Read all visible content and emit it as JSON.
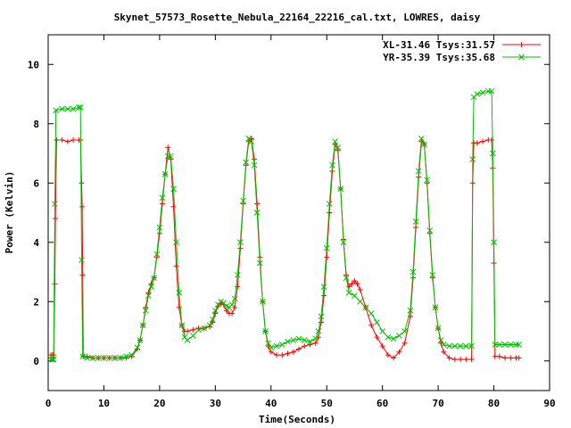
{
  "chart_data": {
    "type": "line",
    "title": "Skynet_57573_Rosette_Nebula_22164_22216_cal.txt, LOWRES, daisy",
    "xlabel": "Time(Seconds)",
    "ylabel": "Power (Kelvin)",
    "xlim": [
      0,
      90
    ],
    "ylim": [
      -1,
      11
    ],
    "xticks": [
      0,
      10,
      20,
      30,
      40,
      50,
      60,
      70,
      80,
      90
    ],
    "yticks": [
      0,
      2,
      4,
      6,
      8,
      10
    ],
    "grid": false,
    "legend_position": "top-right",
    "series": [
      {
        "name": "XL-31.46 Tsys:31.57",
        "color": "#ff0000",
        "marker": "plus",
        "points": [
          [
            0.5,
            0.2
          ],
          [
            0.8,
            0.2
          ],
          [
            1.0,
            0.2
          ],
          [
            1.2,
            2.6
          ],
          [
            1.3,
            4.8
          ],
          [
            1.5,
            7.45
          ],
          [
            2.5,
            7.45
          ],
          [
            3.5,
            7.4
          ],
          [
            4.5,
            7.45
          ],
          [
            5.5,
            7.45
          ],
          [
            5.8,
            7.45
          ],
          [
            6.0,
            6.0
          ],
          [
            6.1,
            5.2
          ],
          [
            6.2,
            2.9
          ],
          [
            6.3,
            0.15
          ],
          [
            7,
            0.15
          ],
          [
            8,
            0.1
          ],
          [
            9,
            0.1
          ],
          [
            10,
            0.1
          ],
          [
            11,
            0.1
          ],
          [
            12,
            0.1
          ],
          [
            13,
            0.1
          ],
          [
            14,
            0.1
          ],
          [
            15,
            0.15
          ],
          [
            16,
            0.4
          ],
          [
            16.5,
            0.7
          ],
          [
            17,
            1.2
          ],
          [
            17.5,
            1.8
          ],
          [
            18,
            2.3
          ],
          [
            18.5,
            2.6
          ],
          [
            19,
            2.8
          ],
          [
            19.5,
            3.5
          ],
          [
            20,
            4.3
          ],
          [
            20.5,
            5.3
          ],
          [
            21,
            6.3
          ],
          [
            21.5,
            7.2
          ],
          [
            22,
            6.8
          ],
          [
            22.5,
            5.2
          ],
          [
            23,
            3.2
          ],
          [
            23.5,
            1.8
          ],
          [
            24,
            1.2
          ],
          [
            24.5,
            1.0
          ],
          [
            25,
            1.0
          ],
          [
            26,
            1.05
          ],
          [
            27,
            1.1
          ],
          [
            28,
            1.1
          ],
          [
            29,
            1.15
          ],
          [
            29.5,
            1.3
          ],
          [
            30,
            1.6
          ],
          [
            30.5,
            1.85
          ],
          [
            31,
            1.95
          ],
          [
            31.5,
            1.9
          ],
          [
            32,
            1.7
          ],
          [
            32.5,
            1.6
          ],
          [
            33,
            1.6
          ],
          [
            33.5,
            1.8
          ],
          [
            34,
            2.5
          ],
          [
            34.5,
            3.8
          ],
          [
            35,
            5.3
          ],
          [
            35.5,
            6.6
          ],
          [
            36,
            7.4
          ],
          [
            36.5,
            7.5
          ],
          [
            37,
            6.8
          ],
          [
            37.5,
            5.3
          ],
          [
            38,
            3.5
          ],
          [
            38.5,
            2.0
          ],
          [
            39,
            1.0
          ],
          [
            39.5,
            0.5
          ],
          [
            40,
            0.3
          ],
          [
            41,
            0.2
          ],
          [
            42,
            0.2
          ],
          [
            43,
            0.25
          ],
          [
            44,
            0.3
          ],
          [
            45,
            0.4
          ],
          [
            46,
            0.5
          ],
          [
            47,
            0.55
          ],
          [
            48,
            0.6
          ],
          [
            48.5,
            0.8
          ],
          [
            49,
            1.3
          ],
          [
            49.5,
            2.2
          ],
          [
            50,
            3.5
          ],
          [
            50.5,
            5.0
          ],
          [
            51,
            6.4
          ],
          [
            51.5,
            7.3
          ],
          [
            52,
            7.1
          ],
          [
            52.5,
            5.8
          ],
          [
            53,
            4.1
          ],
          [
            53.5,
            2.9
          ],
          [
            54,
            2.5
          ],
          [
            54.5,
            2.6
          ],
          [
            55,
            2.7
          ],
          [
            55.5,
            2.6
          ],
          [
            56,
            2.4
          ],
          [
            57,
            1.8
          ],
          [
            58,
            1.2
          ],
          [
            59,
            0.8
          ],
          [
            60,
            0.5
          ],
          [
            61,
            0.2
          ],
          [
            62,
            0.1
          ],
          [
            63,
            0.3
          ],
          [
            64,
            0.6
          ],
          [
            65,
            1.5
          ],
          [
            65.5,
            2.8
          ],
          [
            66,
            4.5
          ],
          [
            66.5,
            6.2
          ],
          [
            67,
            7.4
          ],
          [
            67.5,
            7.3
          ],
          [
            68,
            6.0
          ],
          [
            68.5,
            4.3
          ],
          [
            69,
            2.8
          ],
          [
            69.5,
            1.8
          ],
          [
            70,
            1.1
          ],
          [
            70.5,
            0.6
          ],
          [
            71,
            0.3
          ],
          [
            72,
            0.1
          ],
          [
            73,
            0.05
          ],
          [
            74,
            0.05
          ],
          [
            75,
            0.05
          ],
          [
            76,
            0.05
          ],
          [
            76.2,
            6.0
          ],
          [
            76.4,
            7.35
          ],
          [
            77,
            7.35
          ],
          [
            78,
            7.4
          ],
          [
            79,
            7.45
          ],
          [
            79.6,
            7.45
          ],
          [
            79.8,
            6.5
          ],
          [
            80,
            3.3
          ],
          [
            80.2,
            0.15
          ],
          [
            81,
            0.15
          ],
          [
            82,
            0.1
          ],
          [
            83,
            0.1
          ],
          [
            84,
            0.1
          ],
          [
            84.5,
            0.1
          ]
        ]
      },
      {
        "name": "YR-35.39 Tsys:35.68",
        "color": "#00c000",
        "marker": "cross",
        "points": [
          [
            0.5,
            0.05
          ],
          [
            0.8,
            0.05
          ],
          [
            1.0,
            0.05
          ],
          [
            1.2,
            5.3
          ],
          [
            1.4,
            8.45
          ],
          [
            2.5,
            8.5
          ],
          [
            3.5,
            8.5
          ],
          [
            4.5,
            8.5
          ],
          [
            5.5,
            8.55
          ],
          [
            5.8,
            8.55
          ],
          [
            6.0,
            3.4
          ],
          [
            6.2,
            0.15
          ],
          [
            7,
            0.1
          ],
          [
            8,
            0.1
          ],
          [
            9,
            0.1
          ],
          [
            10,
            0.1
          ],
          [
            11,
            0.1
          ],
          [
            12,
            0.1
          ],
          [
            13,
            0.1
          ],
          [
            14,
            0.15
          ],
          [
            15,
            0.2
          ],
          [
            16,
            0.45
          ],
          [
            16.5,
            0.7
          ],
          [
            17,
            1.2
          ],
          [
            17.5,
            1.7
          ],
          [
            18,
            2.2
          ],
          [
            18.5,
            2.5
          ],
          [
            19,
            2.8
          ],
          [
            19.5,
            3.6
          ],
          [
            20,
            4.5
          ],
          [
            20.5,
            5.5
          ],
          [
            21,
            6.3
          ],
          [
            21.5,
            6.9
          ],
          [
            22,
            6.9
          ],
          [
            22.5,
            5.8
          ],
          [
            23,
            4.0
          ],
          [
            23.5,
            2.3
          ],
          [
            24,
            1.2
          ],
          [
            24.5,
            0.8
          ],
          [
            25,
            0.7
          ],
          [
            26,
            0.85
          ],
          [
            27,
            1.05
          ],
          [
            28,
            1.1
          ],
          [
            29,
            1.2
          ],
          [
            29.5,
            1.4
          ],
          [
            30,
            1.7
          ],
          [
            30.5,
            1.9
          ],
          [
            31,
            2.0
          ],
          [
            31.5,
            1.95
          ],
          [
            32,
            1.85
          ],
          [
            32.5,
            1.8
          ],
          [
            33,
            1.9
          ],
          [
            33.5,
            2.1
          ],
          [
            34,
            2.9
          ],
          [
            34.5,
            4.0
          ],
          [
            35,
            5.4
          ],
          [
            35.5,
            6.7
          ],
          [
            36,
            7.5
          ],
          [
            36.5,
            7.4
          ],
          [
            37,
            6.6
          ],
          [
            37.5,
            5.0
          ],
          [
            38,
            3.3
          ],
          [
            38.5,
            2.0
          ],
          [
            39,
            1.0
          ],
          [
            39.5,
            0.6
          ],
          [
            40,
            0.45
          ],
          [
            41,
            0.5
          ],
          [
            42,
            0.55
          ],
          [
            43,
            0.65
          ],
          [
            44,
            0.7
          ],
          [
            45,
            0.75
          ],
          [
            46,
            0.7
          ],
          [
            47,
            0.65
          ],
          [
            48,
            0.75
          ],
          [
            48.5,
            1.0
          ],
          [
            49,
            1.5
          ],
          [
            49.5,
            2.5
          ],
          [
            50,
            3.8
          ],
          [
            50.5,
            5.3
          ],
          [
            51,
            6.6
          ],
          [
            51.5,
            7.4
          ],
          [
            52,
            7.2
          ],
          [
            52.5,
            5.8
          ],
          [
            53,
            4.0
          ],
          [
            53.5,
            2.8
          ],
          [
            54,
            2.3
          ],
          [
            55,
            2.2
          ],
          [
            56,
            2.0
          ],
          [
            57,
            1.8
          ],
          [
            58,
            1.6
          ],
          [
            59,
            1.3
          ],
          [
            60,
            1.0
          ],
          [
            61,
            0.8
          ],
          [
            62,
            0.75
          ],
          [
            63,
            0.85
          ],
          [
            64,
            1.0
          ],
          [
            65,
            1.7
          ],
          [
            65.5,
            3.0
          ],
          [
            66,
            4.7
          ],
          [
            66.5,
            6.4
          ],
          [
            67,
            7.5
          ],
          [
            67.5,
            7.3
          ],
          [
            68,
            6.1
          ],
          [
            68.5,
            4.4
          ],
          [
            69,
            2.9
          ],
          [
            69.5,
            1.8
          ],
          [
            70,
            1.1
          ],
          [
            70.5,
            0.7
          ],
          [
            71,
            0.55
          ],
          [
            72,
            0.5
          ],
          [
            73,
            0.5
          ],
          [
            74,
            0.5
          ],
          [
            75,
            0.5
          ],
          [
            76,
            0.5
          ],
          [
            76.2,
            6.8
          ],
          [
            76.4,
            8.9
          ],
          [
            77,
            9.0
          ],
          [
            78,
            9.05
          ],
          [
            79,
            9.1
          ],
          [
            79.6,
            9.1
          ],
          [
            79.8,
            7.0
          ],
          [
            80,
            4.0
          ],
          [
            80.2,
            0.55
          ],
          [
            81,
            0.55
          ],
          [
            82,
            0.55
          ],
          [
            83,
            0.55
          ],
          [
            84,
            0.55
          ],
          [
            84.5,
            0.55
          ]
        ]
      }
    ]
  }
}
